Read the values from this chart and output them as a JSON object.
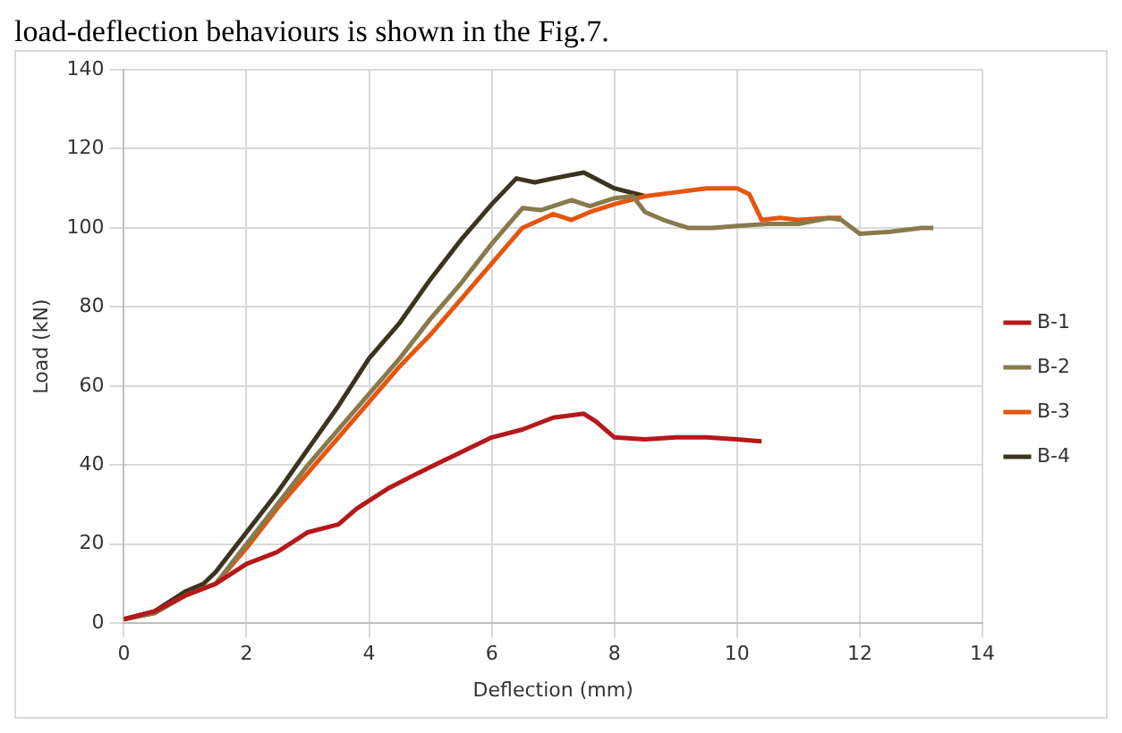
{
  "chart_data": {
    "type": "line",
    "xlabel": "Deflection (mm)",
    "ylabel": "Load (kN)",
    "annotations": [
      "load-deflection behaviours is shown in the Fig.7."
    ],
    "xlim": [
      0,
      14
    ],
    "xticks": [
      0,
      2,
      4,
      6,
      8,
      10,
      12,
      14
    ],
    "ylim": [
      0,
      140
    ],
    "yticks": [
      0,
      20,
      40,
      60,
      80,
      100,
      120,
      140
    ],
    "grid": true,
    "legend": "right",
    "marker": "none",
    "line_style": "solid",
    "series": [
      {
        "name": "B-1",
        "color": "#b5191b",
        "x": [
          0,
          0.5,
          1,
          1.5,
          2,
          2.5,
          3,
          3.5,
          3.8,
          4.3,
          4.8,
          5.2,
          5.6,
          6,
          6.5,
          7,
          7.5,
          7.7,
          8,
          8.5,
          9,
          9.5,
          10,
          10.4
        ],
        "values": [
          1,
          3,
          7,
          10,
          15,
          18,
          23,
          25,
          29,
          34,
          38,
          41,
          44,
          47,
          49,
          52,
          53,
          51,
          47,
          46.5,
          47,
          47,
          46.5,
          46
        ]
      },
      {
        "name": "B-2",
        "color": "#887a4c",
        "x": [
          0,
          0.5,
          1,
          1.5,
          2,
          2.5,
          3,
          3.5,
          4,
          4.5,
          5,
          5.5,
          6,
          6.5,
          6.8,
          7.3,
          7.6,
          8,
          8.3,
          8.5,
          8.8,
          9.2,
          9.6,
          10,
          10.5,
          11,
          11.5,
          11.7,
          12,
          12.5,
          13,
          13.2
        ],
        "values": [
          1,
          2.5,
          7,
          10,
          20,
          30,
          40,
          49,
          58,
          67,
          77,
          86,
          96,
          105,
          104.5,
          107,
          105.5,
          107.5,
          108,
          104,
          102,
          100,
          100,
          100.5,
          101,
          101,
          102.5,
          102,
          98.5,
          99,
          100,
          100
        ]
      },
      {
        "name": "B-3",
        "color": "#e4560f",
        "x": [
          1,
          1.5,
          2,
          2.5,
          3,
          3.5,
          4,
          4.5,
          5,
          5.5,
          6,
          6.5,
          7,
          7.3,
          7.6,
          8,
          8.5,
          9,
          9.5,
          10,
          10.2,
          10.4,
          10.7,
          11,
          11.5,
          11.7
        ],
        "values": [
          7,
          10,
          19,
          29,
          38,
          47,
          56,
          65,
          73,
          82,
          91,
          100,
          103.5,
          102,
          104,
          106,
          108,
          109,
          110,
          110,
          108.5,
          102,
          102.5,
          102,
          102.5,
          102.5
        ]
      },
      {
        "name": "B-4",
        "color": "#3b3520",
        "x": [
          0,
          0.5,
          1,
          1.3,
          1.5,
          2,
          2.5,
          3,
          3.5,
          4,
          4.5,
          5,
          5.5,
          6,
          6.4,
          6.7,
          7,
          7.5,
          8,
          8.5
        ],
        "values": [
          1,
          3,
          8,
          10,
          13,
          23,
          33,
          44,
          55,
          67,
          76,
          87,
          97,
          106,
          112.5,
          111.5,
          112.5,
          114,
          110,
          108
        ]
      }
    ]
  }
}
